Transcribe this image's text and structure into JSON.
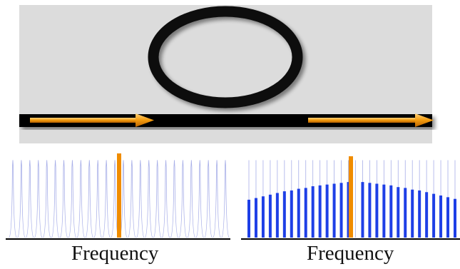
{
  "colors": {
    "panel_bg": "#dcdcdc",
    "waveguide": "#000000",
    "ring": "#0b0b0b",
    "arrow": "#f08c00",
    "pump": "#f08c00",
    "resonance_line": "#a7aee8",
    "comb_line": "#1e3fe6",
    "axis": "#000000"
  },
  "setup": {
    "ring_name": "microring-resonator",
    "input_arrow": "arrow-right-icon",
    "output_arrow": "arrow-right-icon"
  },
  "spectra": {
    "left": {
      "xlabel": "Frequency",
      "resonance_count": 26,
      "pump_index": 13,
      "pump_level": 1.0,
      "resonance_level": 0.92
    },
    "right": {
      "xlabel": "Frequency",
      "pump_level": 1.0,
      "comb_levels": [
        0.45,
        0.47,
        0.49,
        0.51,
        0.53,
        0.55,
        0.56,
        0.58,
        0.59,
        0.61,
        0.62,
        0.63,
        0.64,
        0.65,
        0.66,
        0.66,
        0.65,
        0.64,
        0.63,
        0.62,
        0.6,
        0.59,
        0.57,
        0.56,
        0.54,
        0.52,
        0.5,
        0.48,
        0.46
      ],
      "pump_index": 15,
      "resonance_count": 30
    }
  }
}
